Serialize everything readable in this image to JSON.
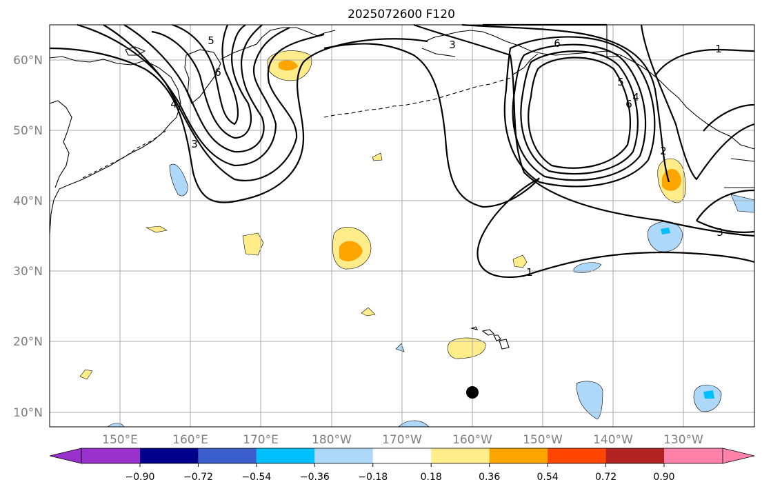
{
  "title": "2025072600 F120",
  "lat_labels": [
    "60°N",
    "50°N",
    "40°N",
    "30°N",
    "20°N",
    "10°N"
  ],
  "lon_labels": [
    "150°E",
    "160°E",
    "170°E",
    "180°W",
    "170°W",
    "160°W",
    "150°W",
    "140°W",
    "130°W"
  ],
  "contour_labels": [
    "5",
    "6",
    "4",
    "3",
    "3",
    "6",
    "5",
    "4",
    "6",
    "2",
    "1",
    "3",
    "1"
  ],
  "colorbar": {
    "ticks": [
      "−0.90",
      "−0.72",
      "−0.54",
      "−0.36",
      "−0.18",
      "0.18",
      "0.36",
      "0.54",
      "0.72",
      "0.90"
    ],
    "colors": [
      "#9932cc",
      "#00008b",
      "#3a5fcd",
      "#00bfff",
      "#add8f9",
      "#ffffff",
      "#ffec8b",
      "#ffa500",
      "#ff4500",
      "#b22222",
      "#ff82ab"
    ]
  },
  "colors": {
    "neg_light": "#add8f9",
    "neg_mid": "#00bfff",
    "pos_light": "#ffec8b",
    "pos_mid": "#ffa500",
    "grid": "#a9a9a9",
    "axis_label": "#808080"
  },
  "marker": "storm-center-dot"
}
